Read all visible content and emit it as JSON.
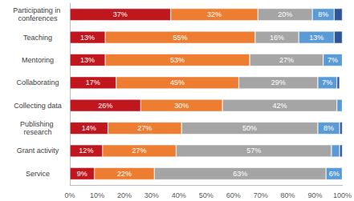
{
  "chart_data": {
    "type": "bar",
    "orientation": "horizontal",
    "stacked": true,
    "data_labels": true,
    "grid": false,
    "categories": [
      "Participating in conferences",
      "Teaching",
      "Mentoring",
      "Collaborating",
      "Collecting data",
      "Publishing research",
      "Grant activity",
      "Service"
    ],
    "series": [
      {
        "color": "#c0161e",
        "values": [
          37,
          13,
          13,
          17,
          26,
          14,
          12,
          9
        ],
        "value_labels": [
          "37%",
          "13%",
          "13%",
          "17%",
          "26%",
          "14%",
          "12%",
          "9%"
        ]
      },
      {
        "color": "#ed7d31",
        "values": [
          32,
          55,
          53,
          45,
          30,
          27,
          27,
          22
        ],
        "value_labels": [
          "32%",
          "55%",
          "53%",
          "45%",
          "30%",
          "27%",
          "27%",
          "22%"
        ]
      },
      {
        "color": "#a5a5a5",
        "values": [
          20,
          16,
          27,
          29,
          42,
          50,
          57,
          63
        ],
        "value_labels": [
          "20%",
          "16%",
          "27%",
          "29%",
          "42%",
          "50%",
          "57%",
          "63%"
        ]
      },
      {
        "color": "#5b9bd5",
        "values": [
          8,
          13,
          7,
          7,
          2,
          8,
          3,
          6
        ],
        "value_labels": [
          "8%",
          "13%",
          "7%",
          "7%",
          null,
          "8%",
          null,
          "6%"
        ]
      },
      {
        "color": "#2f5597",
        "values": [
          3,
          3,
          0,
          1,
          0,
          1,
          1,
          0
        ],
        "value_labels": [
          null,
          null,
          null,
          null,
          null,
          null,
          null,
          null
        ]
      }
    ],
    "xlim": [
      0,
      100
    ],
    "xticks": [
      {
        "value": 0,
        "label": "0%"
      },
      {
        "value": 10,
        "label": "10%"
      },
      {
        "value": 20,
        "label": "20%"
      },
      {
        "value": 30,
        "label": "30%"
      },
      {
        "value": 40,
        "label": "40%"
      },
      {
        "value": 50,
        "label": "50%"
      },
      {
        "value": 60,
        "label": "60%"
      },
      {
        "value": 70,
        "label": "70%"
      },
      {
        "value": 80,
        "label": "80%"
      },
      {
        "value": 90,
        "label": "90%"
      },
      {
        "value": 100,
        "label": "100%"
      }
    ]
  }
}
